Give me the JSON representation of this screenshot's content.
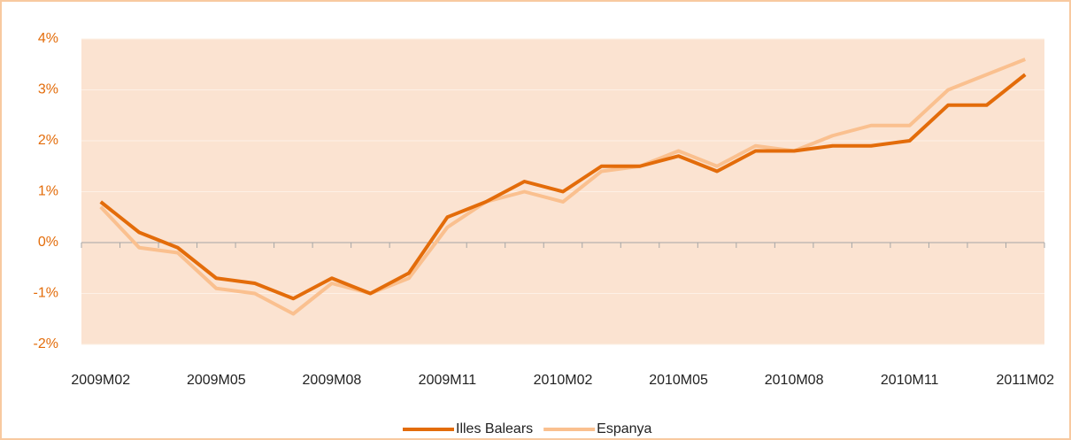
{
  "chart_data": {
    "type": "line",
    "categories": [
      "2009M02",
      null,
      null,
      "2009M05",
      null,
      null,
      "2009M08",
      null,
      null,
      "2009M11",
      null,
      null,
      "2010M02",
      null,
      null,
      "2010M05",
      null,
      null,
      "2010M08",
      null,
      null,
      "2010M11",
      null,
      null,
      "2011M02"
    ],
    "series": [
      {
        "name": "Illes Balears",
        "color": "#e36c0a",
        "values": [
          0.8,
          0.2,
          -0.1,
          -0.7,
          -0.8,
          -1.1,
          -0.7,
          -1.0,
          -0.6,
          0.5,
          0.8,
          1.2,
          1.0,
          1.5,
          1.5,
          1.7,
          1.4,
          1.8,
          1.8,
          1.9,
          1.9,
          2.0,
          2.7,
          2.7,
          3.3
        ]
      },
      {
        "name": "Espanya",
        "color": "#fac08f",
        "values": [
          0.7,
          -0.1,
          -0.2,
          -0.9,
          -1.0,
          -1.4,
          -0.8,
          -1.0,
          -0.7,
          0.3,
          0.8,
          1.0,
          0.8,
          1.4,
          1.5,
          1.8,
          1.5,
          1.9,
          1.8,
          2.1,
          2.3,
          2.3,
          3.0,
          3.3,
          3.6
        ]
      }
    ],
    "ylim": [
      -2,
      4
    ],
    "yticks": [
      {
        "value": -2,
        "label": "-2%"
      },
      {
        "value": -1,
        "label": "-1%"
      },
      {
        "value": 0,
        "label": "0%"
      },
      {
        "value": 1,
        "label": "1%"
      },
      {
        "value": 2,
        "label": "2%"
      },
      {
        "value": 3,
        "label": "3%"
      },
      {
        "value": 4,
        "label": "4%"
      }
    ],
    "grid": true,
    "legend": "bottom"
  }
}
